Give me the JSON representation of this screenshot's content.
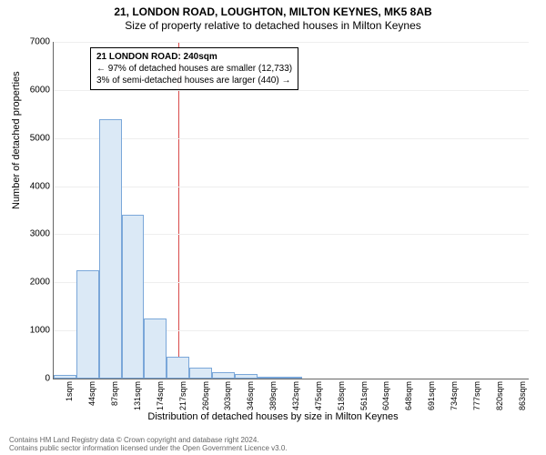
{
  "header": {
    "title": "21, LONDON ROAD, LOUGHTON, MILTON KEYNES, MK5 8AB",
    "subtitle": "Size of property relative to detached houses in Milton Keynes"
  },
  "chart": {
    "type": "histogram",
    "ylabel": "Number of detached properties",
    "xlabel": "Distribution of detached houses by size in Milton Keynes",
    "ylim": [
      0,
      7000
    ],
    "ytick_step": 1000,
    "yticks": [
      0,
      1000,
      2000,
      3000,
      4000,
      5000,
      6000,
      7000
    ],
    "categories": [
      "1sqm",
      "44sqm",
      "87sqm",
      "131sqm",
      "174sqm",
      "217sqm",
      "260sqm",
      "303sqm",
      "346sqm",
      "389sqm",
      "432sqm",
      "475sqm",
      "518sqm",
      "561sqm",
      "604sqm",
      "648sqm",
      "691sqm",
      "734sqm",
      "777sqm",
      "820sqm",
      "863sqm"
    ],
    "values": [
      80,
      2250,
      5400,
      3400,
      1250,
      450,
      230,
      140,
      90,
      40,
      40,
      0,
      0,
      0,
      0,
      0,
      0,
      0,
      0,
      0,
      0
    ],
    "bar_fill": "#dbe9f6",
    "bar_stroke": "#7aa7d9",
    "grid_color": "#eeeeee",
    "axis_color": "#666666",
    "background": "#ffffff",
    "bar_width_ratio": 1.0,
    "marker": {
      "x_category_index": 5.5,
      "color": "#d94a4a"
    },
    "info_box": {
      "line1": "21 LONDON ROAD: 240sqm",
      "line2": "← 97% of detached houses are smaller (12,733)",
      "line3": "3% of semi-detached houses are larger (440) →"
    }
  },
  "footer": {
    "line1": "Contains HM Land Registry data © Crown copyright and database right 2024.",
    "line2": "Contains public sector information licensed under the Open Government Licence v3.0."
  }
}
